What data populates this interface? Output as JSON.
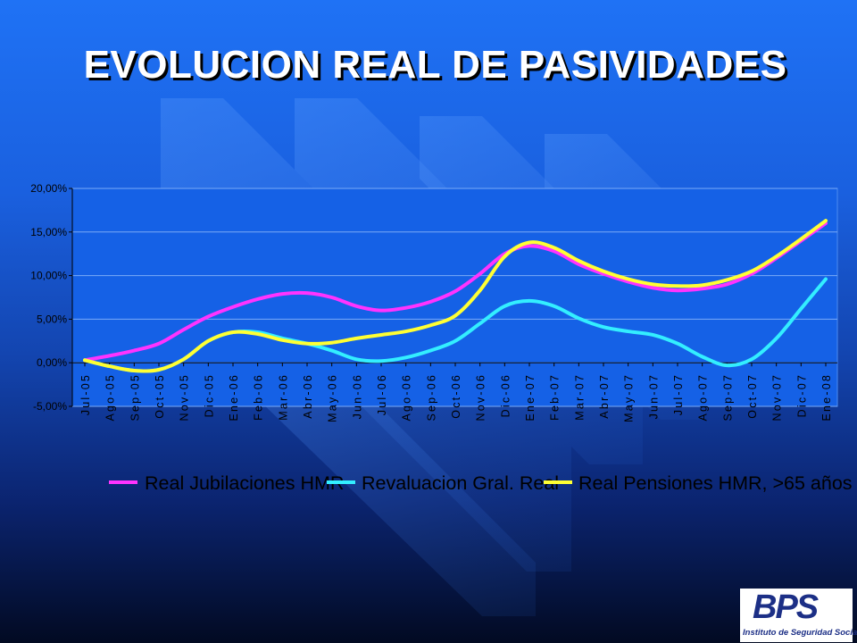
{
  "slide": {
    "title": "EVOLUCION REAL DE PASIVIDADES"
  },
  "logo": {
    "mark": "BPS",
    "subtitle": "Instituto de Seguridad Social"
  },
  "colors": {
    "background_top": "#1f72f5",
    "background_bottom": "#020a22",
    "series_magenta": "#ff33ff",
    "series_cyan": "#33eeff",
    "series_yellow": "#ffff33",
    "logo_blue": "#1c2f86"
  },
  "chart_data": {
    "type": "line",
    "title": "",
    "xlabel": "",
    "ylabel": "",
    "ylim": [
      -5,
      20
    ],
    "y_ticks": [
      -5,
      0,
      5,
      10,
      15,
      20
    ],
    "y_tick_labels": [
      "-5,00%",
      "0,00%",
      "5,00%",
      "10,00%",
      "15,00%",
      "20,00%"
    ],
    "grid": "horizontal",
    "legend_position": "bottom",
    "categories": [
      "Jul-05",
      "Ago-05",
      "Sep-05",
      "Oct-05",
      "Nov-05",
      "Dic-05",
      "Ene-06",
      "Feb-06",
      "Mar-06",
      "Abr-06",
      "May-06",
      "Jun-06",
      "Jul-06",
      "Ago-06",
      "Sep-06",
      "Oct-06",
      "Nov-06",
      "Dic-06",
      "Ene-07",
      "Feb-07",
      "Mar-07",
      "Abr-07",
      "May-07",
      "Jun-07",
      "Jul-07",
      "Ago-07",
      "Sep-07",
      "Oct-07",
      "Nov-07",
      "Dic-07",
      "Ene-08"
    ],
    "series": [
      {
        "name": "Real Jubilaciones HMR",
        "color": "#ff33ff",
        "values": [
          0.3,
          0.8,
          1.4,
          2.2,
          3.8,
          5.3,
          6.4,
          7.3,
          7.9,
          8.0,
          7.5,
          6.5,
          6.0,
          6.3,
          7.0,
          8.2,
          10.2,
          12.5,
          13.4,
          12.8,
          11.3,
          10.2,
          9.3,
          8.6,
          8.3,
          8.5,
          9.0,
          10.2,
          12.0,
          14.0,
          16.0
        ],
        "values_note": ""
      },
      {
        "name": "Revaluacion Gral. Real",
        "color": "#33eeff",
        "values": [
          0.3,
          -0.4,
          -0.9,
          -0.8,
          0.4,
          2.5,
          3.5,
          3.5,
          2.8,
          2.2,
          1.4,
          0.4,
          0.2,
          0.6,
          1.4,
          2.5,
          4.5,
          6.5,
          7.1,
          6.5,
          5.1,
          4.1,
          3.6,
          3.2,
          2.2,
          0.7,
          -0.3,
          0.4,
          2.8,
          6.2,
          9.6
        ]
      },
      {
        "name": "Real Pensiones HMR, >65 años",
        "color": "#ffff33",
        "values": [
          0.3,
          -0.4,
          -0.9,
          -0.8,
          0.4,
          2.5,
          3.5,
          3.3,
          2.6,
          2.2,
          2.3,
          2.8,
          3.2,
          3.6,
          4.3,
          5.4,
          8.3,
          12.2,
          13.8,
          13.2,
          11.7,
          10.5,
          9.6,
          9.0,
          8.8,
          8.9,
          9.5,
          10.5,
          12.2,
          14.2,
          16.3
        ]
      }
    ]
  }
}
